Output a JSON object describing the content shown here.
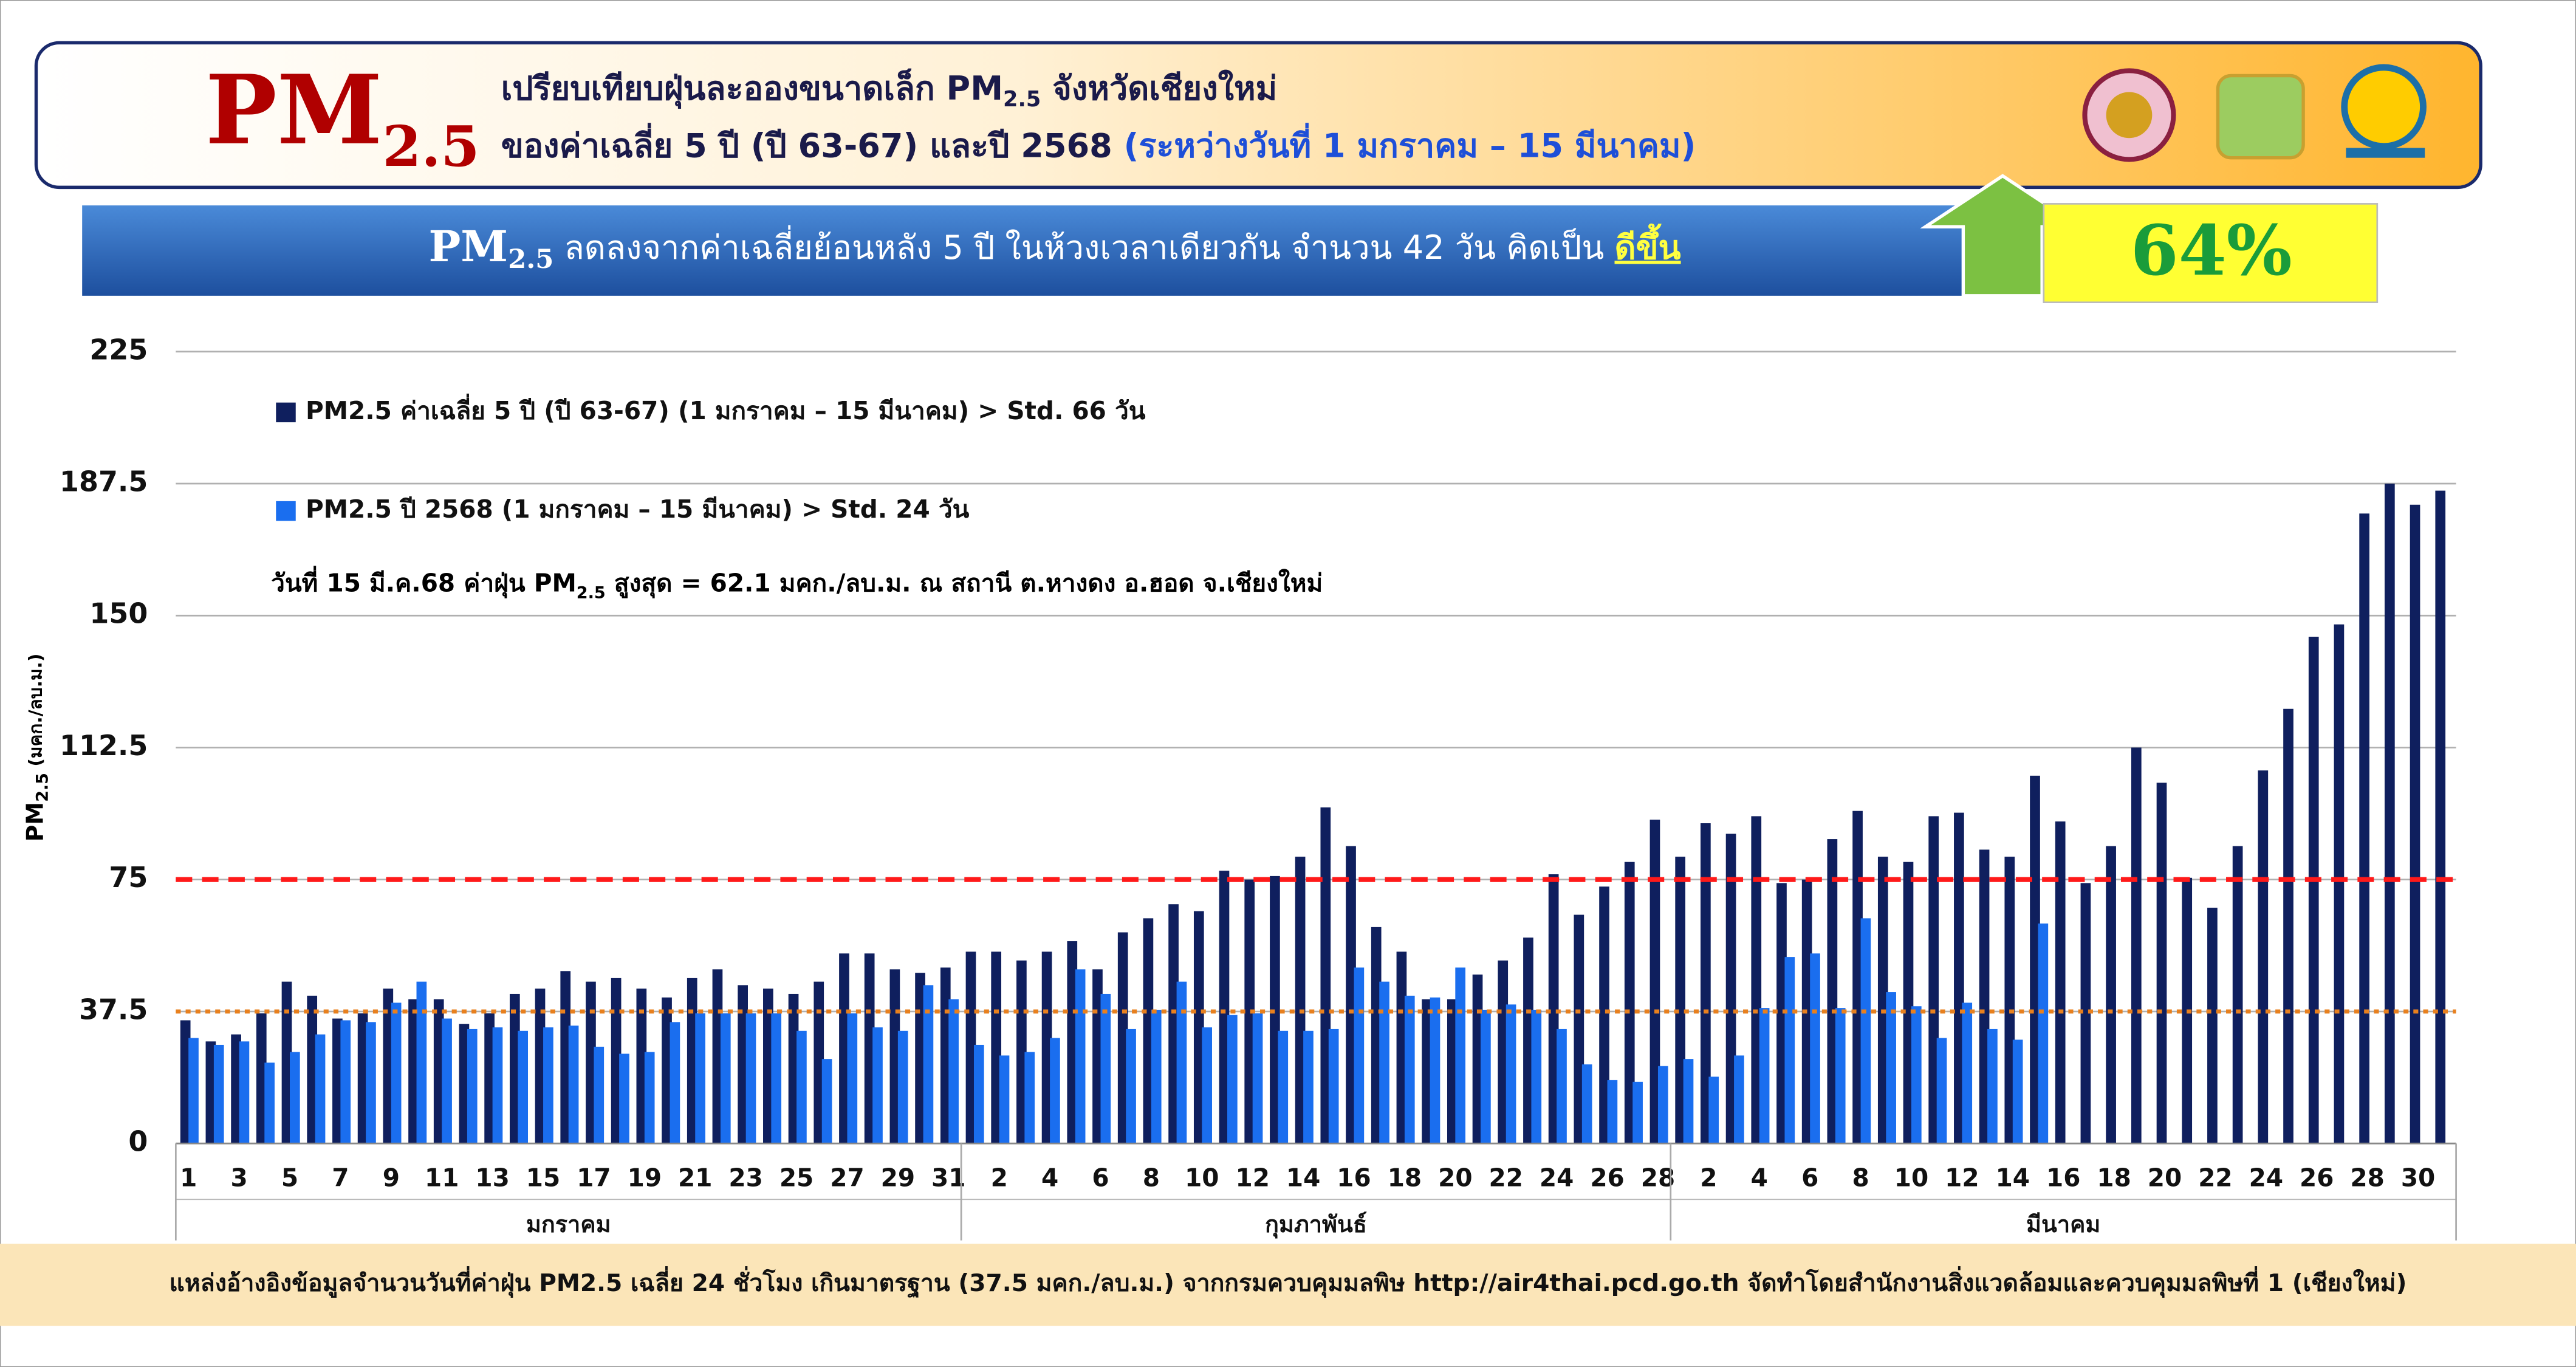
{
  "header": {
    "logo": [
      "PM",
      "2.5"
    ],
    "line1": [
      "เปรียบเทียบฝุ่นละอองขนาดเล็ก PM",
      "2.5",
      " จังหวัดเชียงใหม่"
    ],
    "line2": [
      "ของค่าเฉลี่ย 5 ปี (ปี 63-67) และปี 2568 ",
      "(ระหว่างวันที่ 1 มกราคม – 15 มีนาคม)"
    ]
  },
  "banner": {
    "parts": [
      "PM",
      "2.5",
      " ลดลงจากค่าเฉลี่ยย้อนหลัง 5 ปี ในห้วงเวลาเดียวกัน จำนวน 42 วัน คิดเป็น ",
      "ดีขึ้น"
    ],
    "percent": "64%"
  },
  "chart_data": {
    "type": "bar",
    "y_label": [
      "PM",
      "2.5",
      " (มคก./ลบ.ม.)"
    ],
    "annotation": [
      "วันที่ 15 มี.ค.68 ค่าฝุ่น PM",
      "2.5",
      " สูงสุด = 62.1 มคก./ลบ.ม. ณ สถานี ต.หางดง อ.ฮอด จ.เชียงใหม่"
    ],
    "months": [
      "มกราคม",
      "กุมภาพันธ์",
      "มีนาคม"
    ],
    "categories": [
      "1",
      null,
      "3",
      null,
      "5",
      null,
      "7",
      null,
      "9",
      null,
      "11",
      null,
      "13",
      null,
      "15",
      null,
      "17",
      null,
      "19",
      null,
      "21",
      null,
      "23",
      null,
      "25",
      null,
      "27",
      null,
      "29",
      null,
      "31",
      null,
      "2",
      null,
      "4",
      null,
      "6",
      null,
      "8",
      null,
      "10",
      null,
      "12",
      null,
      "14",
      null,
      "16",
      null,
      "18",
      null,
      "20",
      null,
      "22",
      null,
      "24",
      null,
      "26",
      null,
      "28",
      null,
      "2",
      null,
      "4",
      null,
      "6",
      null,
      "8",
      null,
      "10",
      null,
      "12",
      null,
      "14",
      null,
      "16",
      null,
      "18",
      null,
      "20",
      null,
      "22",
      null,
      "24",
      null,
      "26",
      null,
      "28",
      null,
      "30",
      null
    ],
    "series": [
      {
        "name": "PM2.5 ค่าเฉลี่ย 5 ปี (ปี 63-67) (1 มกราคม – 15 มีนาคม) > Std. 66 วัน",
        "color": "#0f1f5e",
        "values": [
          35,
          29,
          31,
          37,
          46,
          42,
          35.5,
          37,
          44,
          41,
          41,
          34,
          37,
          42.5,
          44,
          49,
          46,
          47,
          44,
          41.5,
          47,
          49.5,
          45,
          44,
          42.5,
          46,
          54,
          54,
          49.5,
          48.5,
          50,
          54.5,
          54.5,
          52,
          54.5,
          57.5,
          49.5,
          60,
          64,
          68,
          66,
          77.5,
          75,
          76,
          81.5,
          95.5,
          84.5,
          61.5,
          54.5,
          41,
          41,
          48,
          52,
          58.5,
          76.5,
          65,
          73,
          80,
          92,
          81.5,
          91,
          88,
          93,
          74,
          75,
          86.5,
          94.5,
          81.5,
          80,
          93,
          94,
          83.5,
          81.5,
          104.5,
          91.5,
          74,
          84.5,
          112.5,
          102.5,
          75.5,
          67,
          84.5,
          106,
          123.5,
          144,
          147.5,
          179,
          187.5,
          181.5,
          185.5
        ]
      },
      {
        "name": "PM2.5 ปี 2568 (1 มกราคม – 15 มีนาคม) > Std. 24 วัน",
        "color": "#1a6eef",
        "values": [
          30,
          28,
          29,
          23,
          26,
          31,
          35,
          34.5,
          40,
          46,
          35.5,
          32.5,
          33,
          32,
          33,
          33.5,
          27.5,
          25.5,
          26,
          34.5,
          37,
          37,
          37,
          37,
          32,
          24,
          37,
          33,
          32,
          45,
          41,
          28,
          25,
          26,
          30,
          49.5,
          42.5,
          32.5,
          38,
          46,
          33,
          36.5,
          37,
          32,
          32,
          32.5,
          50,
          46,
          42,
          41.5,
          50,
          38,
          39.5,
          38,
          32.5,
          22.5,
          18,
          17.5,
          22,
          24,
          19,
          25,
          38.5,
          53,
          54,
          38.5,
          64,
          43,
          39,
          30,
          40,
          32.5,
          29.5,
          62.5,
          null,
          null,
          null,
          null,
          null,
          null,
          null,
          null,
          null,
          null,
          null,
          null,
          null,
          null,
          null,
          null
        ]
      }
    ],
    "reference_lines": [
      {
        "value": 75,
        "color": "#ff1a1a"
      },
      {
        "value": 37.5,
        "color": "#e8801e"
      }
    ],
    "ylim": [
      0,
      225
    ],
    "yticks": [
      0,
      37.5,
      75,
      112.5,
      150,
      187.5,
      225
    ],
    "grid": true
  },
  "footer": "แหล่งอ้างอิงข้อมูลจำนวนวันที่ค่าฝุ่น PM2.5 เฉลี่ย 24 ชั่วโมง เกินมาตรฐาน (37.5 มคก./ลบ.ม.) จากกรมควบคุมมลพิษ http://air4thai.pcd.go.th  จัดทำโดยสำนักงานสิ่งแวดล้อมและควบคุมมลพิษที่ 1 (เชียงใหม่)"
}
